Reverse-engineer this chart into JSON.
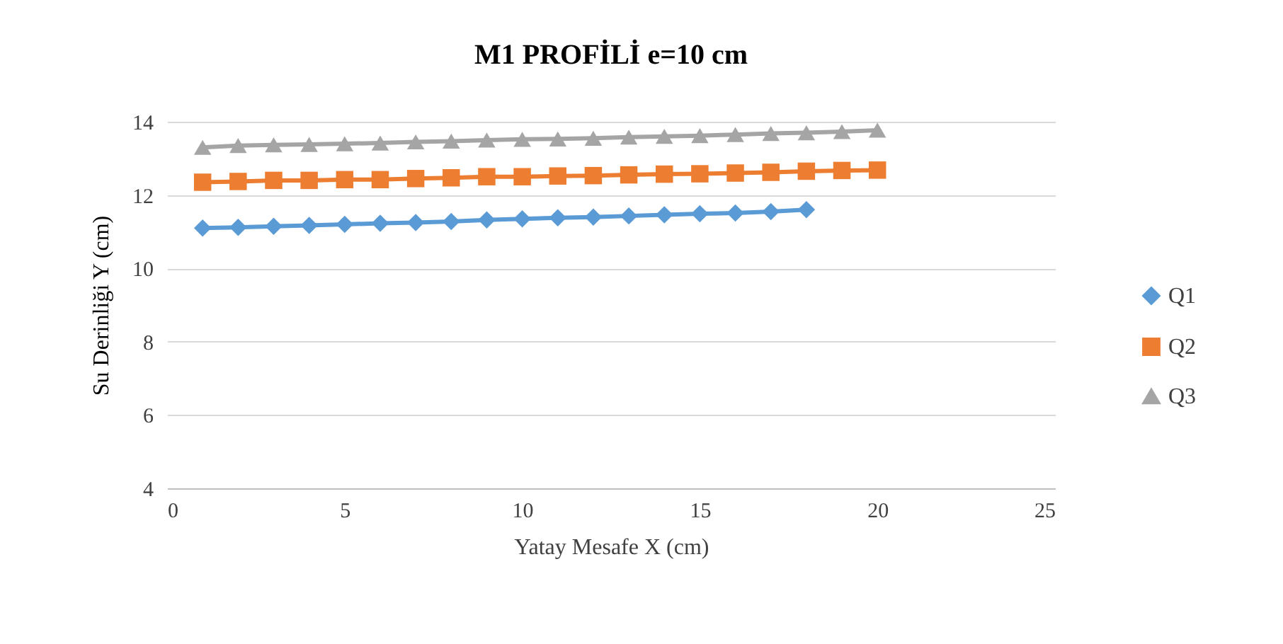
{
  "chart_data": {
    "type": "line",
    "title": "M1 PROFİLİ e=10 cm",
    "xlabel": "Yatay Mesafe X (cm)",
    "ylabel": "Su Derinliği  Y (cm)",
    "xlim": [
      0,
      25
    ],
    "xticks": [
      0,
      5,
      10,
      15,
      20,
      25
    ],
    "ylim": [
      4,
      14
    ],
    "yticks": [
      4,
      6,
      8,
      10,
      12,
      14
    ],
    "grid": "y",
    "legend": "right",
    "series": [
      {
        "name": "Q1",
        "color": "#5b9bd5",
        "marker": "diamond",
        "x": [
          1,
          2,
          3,
          4,
          5,
          6,
          7,
          8,
          9,
          10,
          11,
          12,
          13,
          14,
          15,
          16,
          17,
          18
        ],
        "values": [
          11.1,
          11.12,
          11.15,
          11.17,
          11.2,
          11.23,
          11.25,
          11.28,
          11.32,
          11.35,
          11.38,
          11.4,
          11.43,
          11.46,
          11.49,
          11.51,
          11.55,
          11.6
        ]
      },
      {
        "name": "Q2",
        "color": "#ed7d31",
        "marker": "square",
        "x": [
          1,
          2,
          3,
          4,
          5,
          6,
          7,
          8,
          9,
          10,
          11,
          12,
          13,
          14,
          15,
          16,
          17,
          18,
          19,
          20
        ],
        "values": [
          12.35,
          12.37,
          12.4,
          12.4,
          12.42,
          12.42,
          12.45,
          12.47,
          12.5,
          12.5,
          12.52,
          12.53,
          12.55,
          12.57,
          12.58,
          12.6,
          12.62,
          12.65,
          12.67,
          12.68
        ]
      },
      {
        "name": "Q3",
        "color": "#a5a5a5",
        "marker": "triangle",
        "x": [
          1,
          2,
          3,
          4,
          5,
          6,
          7,
          8,
          9,
          10,
          11,
          12,
          13,
          14,
          15,
          16,
          17,
          18,
          19,
          20
        ],
        "values": [
          13.3,
          13.35,
          13.37,
          13.38,
          13.4,
          13.42,
          13.45,
          13.47,
          13.5,
          13.52,
          13.53,
          13.55,
          13.58,
          13.6,
          13.62,
          13.65,
          13.68,
          13.7,
          13.73,
          13.77
        ]
      }
    ]
  }
}
